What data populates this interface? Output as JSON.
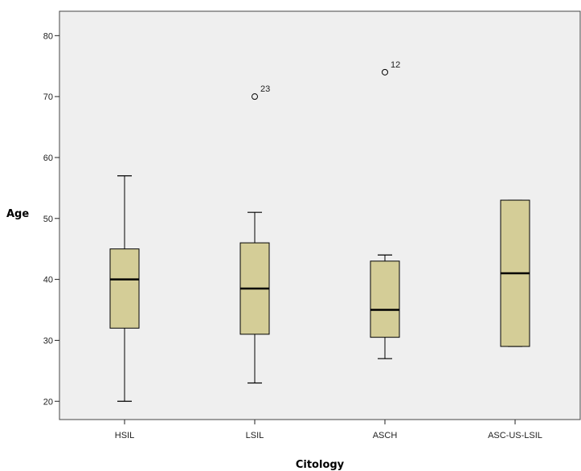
{
  "chart_data": {
    "type": "boxplot",
    "xlabel": "Citology",
    "ylabel": "Age",
    "ylim": [
      17,
      84
    ],
    "yticks": [
      20,
      30,
      40,
      50,
      60,
      70,
      80
    ],
    "grid": false,
    "categories": [
      "HSIL",
      "LSIL",
      "ASCH",
      "ASC-US-LSIL"
    ],
    "boxes": [
      {
        "category": "HSIL",
        "whisker_low": 20,
        "q1": 32,
        "median": 40,
        "q3": 45,
        "whisker_high": 57,
        "outliers": []
      },
      {
        "category": "LSIL",
        "whisker_low": 23,
        "q1": 31,
        "median": 38.5,
        "q3": 46,
        "whisker_high": 51,
        "outliers": [
          {
            "value": 70,
            "label": "23"
          }
        ]
      },
      {
        "category": "ASCH",
        "whisker_low": 27,
        "q1": 30.5,
        "median": 35,
        "q3": 43,
        "whisker_high": 44,
        "outliers": [
          {
            "value": 74,
            "label": "12"
          }
        ]
      },
      {
        "category": "ASC-US-LSIL",
        "whisker_low": 29,
        "q1": 29,
        "median": 41,
        "q3": 53,
        "whisker_high": 53,
        "outliers": []
      }
    ]
  },
  "colors": {
    "plot_background": "#efefef",
    "box_fill": "#d4cd97",
    "stroke": "#000000"
  }
}
